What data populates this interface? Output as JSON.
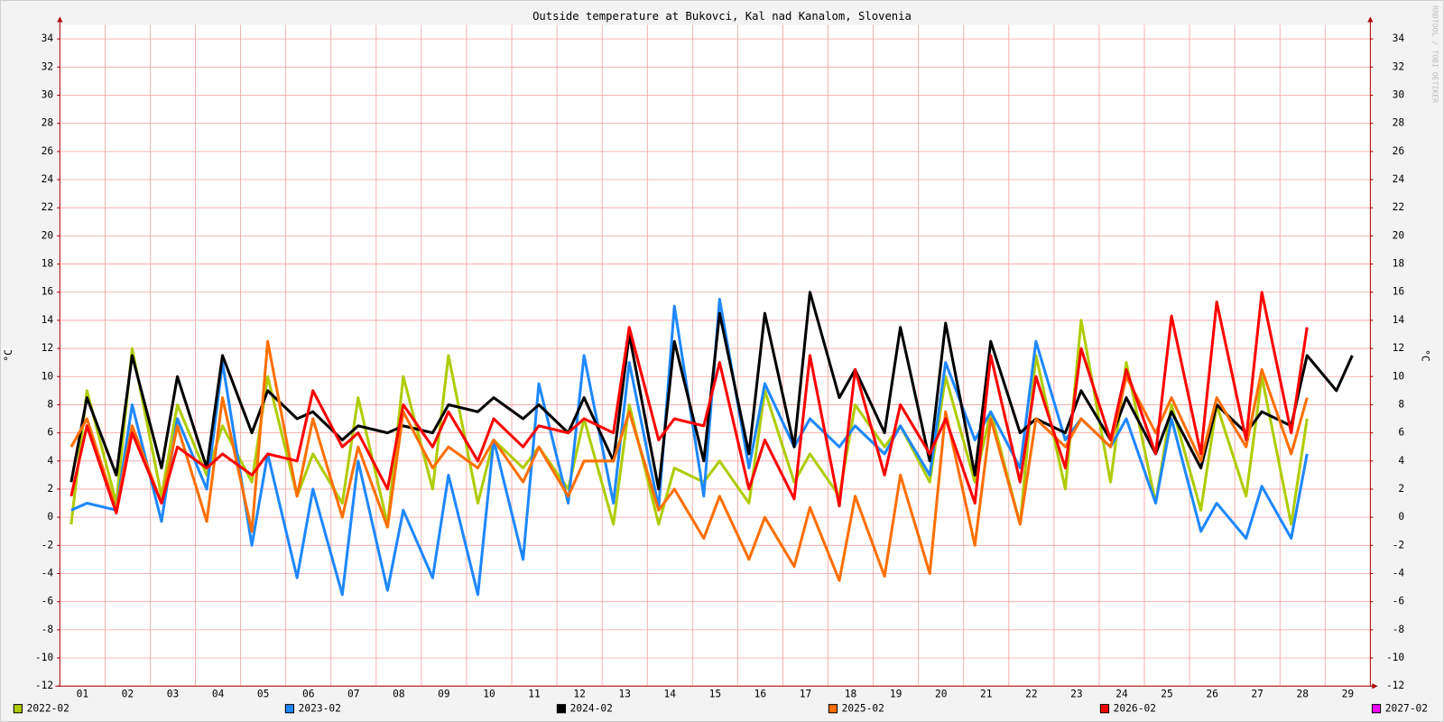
{
  "chart_data": {
    "type": "line",
    "title": "Outside temperature at Bukovci, Kal nad Kanalom, Slovenia",
    "y_label": "°C",
    "watermark": "RRDTOOL / TOBI OETIKER",
    "xlim": [
      0,
      29
    ],
    "xticks": [
      {
        "value": 0.5,
        "label": "01"
      },
      {
        "value": 1.5,
        "label": "02"
      },
      {
        "value": 2.5,
        "label": "03"
      },
      {
        "value": 3.5,
        "label": "04"
      },
      {
        "value": 4.5,
        "label": "05"
      },
      {
        "value": 5.5,
        "label": "06"
      },
      {
        "value": 6.5,
        "label": "07"
      },
      {
        "value": 7.5,
        "label": "08"
      },
      {
        "value": 8.5,
        "label": "09"
      },
      {
        "value": 9.5,
        "label": "10"
      },
      {
        "value": 10.5,
        "label": "11"
      },
      {
        "value": 11.5,
        "label": "12"
      },
      {
        "value": 12.5,
        "label": "13"
      },
      {
        "value": 13.5,
        "label": "14"
      },
      {
        "value": 14.5,
        "label": "15"
      },
      {
        "value": 15.5,
        "label": "16"
      },
      {
        "value": 16.5,
        "label": "17"
      },
      {
        "value": 17.5,
        "label": "18"
      },
      {
        "value": 18.5,
        "label": "19"
      },
      {
        "value": 19.5,
        "label": "20"
      },
      {
        "value": 20.5,
        "label": "21"
      },
      {
        "value": 21.5,
        "label": "22"
      },
      {
        "value": 22.5,
        "label": "23"
      },
      {
        "value": 23.5,
        "label": "24"
      },
      {
        "value": 24.5,
        "label": "25"
      },
      {
        "value": 25.5,
        "label": "26"
      },
      {
        "value": 26.5,
        "label": "27"
      },
      {
        "value": 27.5,
        "label": "28"
      },
      {
        "value": 28.5,
        "label": "29"
      }
    ],
    "ylim": [
      -12,
      35
    ],
    "yticks": [
      -12,
      -10,
      -8,
      -6,
      -4,
      -2,
      0,
      2,
      4,
      6,
      8,
      10,
      12,
      14,
      16,
      18,
      20,
      22,
      24,
      26,
      28,
      30,
      32,
      34
    ],
    "grid": true,
    "x": [
      0.25,
      0.6,
      1.25,
      1.6,
      2.25,
      2.6,
      3.25,
      3.6,
      4.25,
      4.6,
      5.25,
      5.6,
      6.25,
      6.6,
      7.25,
      7.6,
      8.25,
      8.6,
      9.25,
      9.6,
      10.25,
      10.6,
      11.25,
      11.6,
      12.25,
      12.6,
      13.25,
      13.6,
      14.25,
      14.6,
      15.25,
      15.6,
      16.25,
      16.6,
      17.25,
      17.6,
      18.25,
      18.6,
      19.25,
      19.6,
      20.25,
      20.6,
      21.25,
      21.6,
      22.25,
      22.6,
      23.25,
      23.6,
      24.25,
      24.6,
      25.25,
      25.6,
      26.25,
      26.6,
      27.25,
      27.6,
      28.25,
      28.6
    ],
    "series": [
      {
        "name": "2022-02",
        "color": "#afcc00",
        "values": [
          -0.5,
          9,
          1,
          12,
          1.5,
          8,
          3,
          6.5,
          2.5,
          10,
          1.5,
          4.5,
          1,
          8.5,
          -0.5,
          10,
          2,
          11.5,
          1,
          5.5,
          3.5,
          5,
          2,
          7,
          -0.5,
          8,
          -0.5,
          3.5,
          2.5,
          4,
          1,
          9,
          2.5,
          4.5,
          1.5,
          8,
          5,
          6.5,
          2.5,
          10,
          2.5,
          7.5,
          -0.5,
          11.5,
          2,
          14,
          2.5,
          11,
          1,
          8,
          0.5,
          8,
          1.5,
          10,
          -0.5,
          7,
          null,
          null
        ]
      },
      {
        "name": "2023-02",
        "color": "#1e88ff",
        "values": [
          0.5,
          1,
          0.5,
          8,
          -0.3,
          7,
          2,
          11,
          -2,
          4.5,
          -4.3,
          2,
          -5.5,
          4,
          -5.2,
          0.5,
          -4.3,
          3,
          -5.5,
          5.5,
          -3,
          9.5,
          1,
          11.5,
          1,
          11,
          0.7,
          15,
          1.5,
          15.5,
          3.5,
          9.5,
          5,
          7,
          5,
          6.5,
          4.5,
          6.5,
          3,
          11,
          5.5,
          7.5,
          3.5,
          12.5,
          5.5,
          7,
          5,
          7,
          1,
          7,
          -1,
          1,
          -1.5,
          2.2,
          -1.5,
          4.5,
          null,
          null
        ]
      },
      {
        "name": "2024-02",
        "color": "#000000",
        "values": [
          2.5,
          8.5,
          3,
          11.5,
          3.5,
          10,
          3.5,
          11.5,
          6,
          9,
          7,
          7.5,
          5.5,
          6.5,
          6,
          6.5,
          6,
          8,
          7.5,
          8.5,
          7,
          8,
          6,
          8.5,
          4,
          13,
          2,
          12.5,
          4,
          14.5,
          4.5,
          14.5,
          5,
          16,
          8.5,
          10.5,
          6,
          13.5,
          4,
          13.8,
          3,
          12.5,
          6,
          7,
          6,
          9,
          5.5,
          8.5,
          4.5,
          7.5,
          3.5,
          8,
          6,
          7.5,
          6.5,
          11.5,
          9,
          11.5
        ]
      },
      {
        "name": "2025-02",
        "color": "#ff6f00",
        "values": [
          5,
          7,
          0.5,
          6.5,
          1,
          6.5,
          -0.3,
          8.5,
          -1,
          12.5,
          1.5,
          7,
          0,
          5,
          -0.7,
          7.5,
          3.5,
          5,
          3.5,
          5.5,
          2.5,
          5,
          1.5,
          4,
          4,
          7.5,
          0.5,
          2,
          -1.5,
          1.5,
          -3,
          0,
          -3.5,
          0.7,
          -4.5,
          1.5,
          -4.2,
          3,
          -4,
          7.5,
          -2,
          7,
          -0.5,
          7,
          5,
          7,
          5,
          10,
          6,
          8.5,
          4,
          8.5,
          5,
          10.5,
          4.5,
          8.5,
          null,
          null
        ]
      },
      {
        "name": "2026-02",
        "color": "#ff0000",
        "values": [
          1.5,
          6.5,
          0.3,
          6,
          1,
          5,
          3.5,
          4.5,
          3,
          4.5,
          4,
          9,
          5,
          6,
          2,
          8,
          5,
          7.5,
          4,
          7,
          5,
          6.5,
          6,
          7,
          6,
          13.5,
          5.5,
          7,
          6.5,
          11,
          2,
          5.5,
          1.3,
          11.5,
          0.8,
          10.5,
          3,
          8,
          4.5,
          7,
          1,
          11.5,
          2.5,
          10,
          3.5,
          12,
          5.5,
          10.5,
          4.5,
          14.3,
          4.5,
          15.3,
          5.5,
          16,
          6,
          13.5,
          null,
          null
        ]
      },
      {
        "name": "2027-02",
        "color": "#ff00ff",
        "values": [
          null,
          null,
          null,
          null,
          null,
          null,
          null,
          null,
          null,
          null,
          null,
          null,
          null,
          null,
          null,
          null,
          null,
          null,
          null,
          null,
          null,
          null,
          null,
          null,
          null,
          null,
          null,
          null,
          null,
          null,
          null,
          null,
          null,
          null,
          null,
          null,
          null,
          null,
          null,
          null,
          null,
          null,
          null,
          null,
          null,
          null,
          null,
          null,
          null,
          null,
          null,
          null,
          null,
          null,
          null,
          null,
          null,
          null
        ]
      }
    ]
  }
}
